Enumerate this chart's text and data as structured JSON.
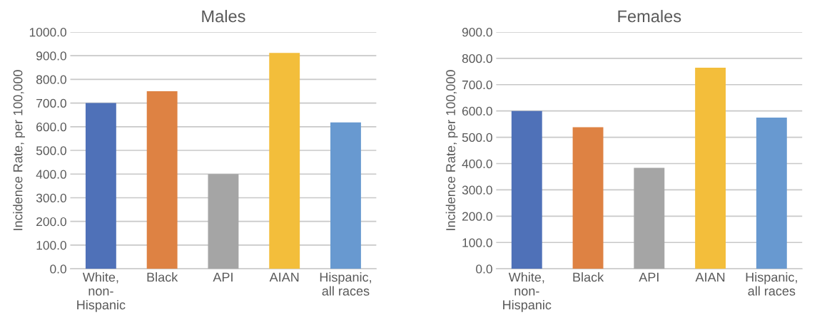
{
  "chart_data": [
    {
      "type": "bar",
      "title": "Males",
      "ylabel": "Incidence Rate, per 100,000",
      "categories": [
        "White,\nnon-\nHispanic",
        "Black",
        "API",
        "AIAN",
        "Hispanic,\nall races"
      ],
      "values": [
        700,
        750,
        400,
        912,
        618
      ],
      "colors": [
        "#4f71b8",
        "#de8243",
        "#a5a5a5",
        "#f3be3b",
        "#6899d0"
      ],
      "ylim": [
        0,
        1000
      ],
      "yticks": [
        {
          "value": 0,
          "label": "0.0"
        },
        {
          "value": 100,
          "label": "100.0"
        },
        {
          "value": 200,
          "label": "200.0"
        },
        {
          "value": 300,
          "label": "300.0"
        },
        {
          "value": 400,
          "label": "400.0"
        },
        {
          "value": 500,
          "label": "500.0"
        },
        {
          "value": 600,
          "label": "600.0"
        },
        {
          "value": 700,
          "label": "700.0"
        },
        {
          "value": 800,
          "label": "800.0"
        },
        {
          "value": 900,
          "label": "900.0"
        },
        {
          "value": 1000,
          "label": "1000.0"
        }
      ],
      "grid": "y"
    },
    {
      "type": "bar",
      "title": "Females",
      "ylabel": "Incidence Rate, per 100,000",
      "categories": [
        "White,\nnon-\nHispanic",
        "Black",
        "API",
        "AIAN",
        "Hispanic,\nall races"
      ],
      "values": [
        600,
        538,
        384,
        764,
        575
      ],
      "colors": [
        "#4f71b8",
        "#de8243",
        "#a5a5a5",
        "#f3be3b",
        "#6899d0"
      ],
      "ylim": [
        0,
        900
      ],
      "yticks": [
        {
          "value": 0,
          "label": "0.0"
        },
        {
          "value": 100,
          "label": "100.0"
        },
        {
          "value": 200,
          "label": "200.0"
        },
        {
          "value": 300,
          "label": "300.0"
        },
        {
          "value": 400,
          "label": "400.0"
        },
        {
          "value": 500,
          "label": "500.0"
        },
        {
          "value": 600,
          "label": "600.0"
        },
        {
          "value": 700,
          "label": "700.0"
        },
        {
          "value": 800,
          "label": "800.0"
        },
        {
          "value": 900,
          "label": "900.0"
        }
      ],
      "grid": "y"
    }
  ]
}
